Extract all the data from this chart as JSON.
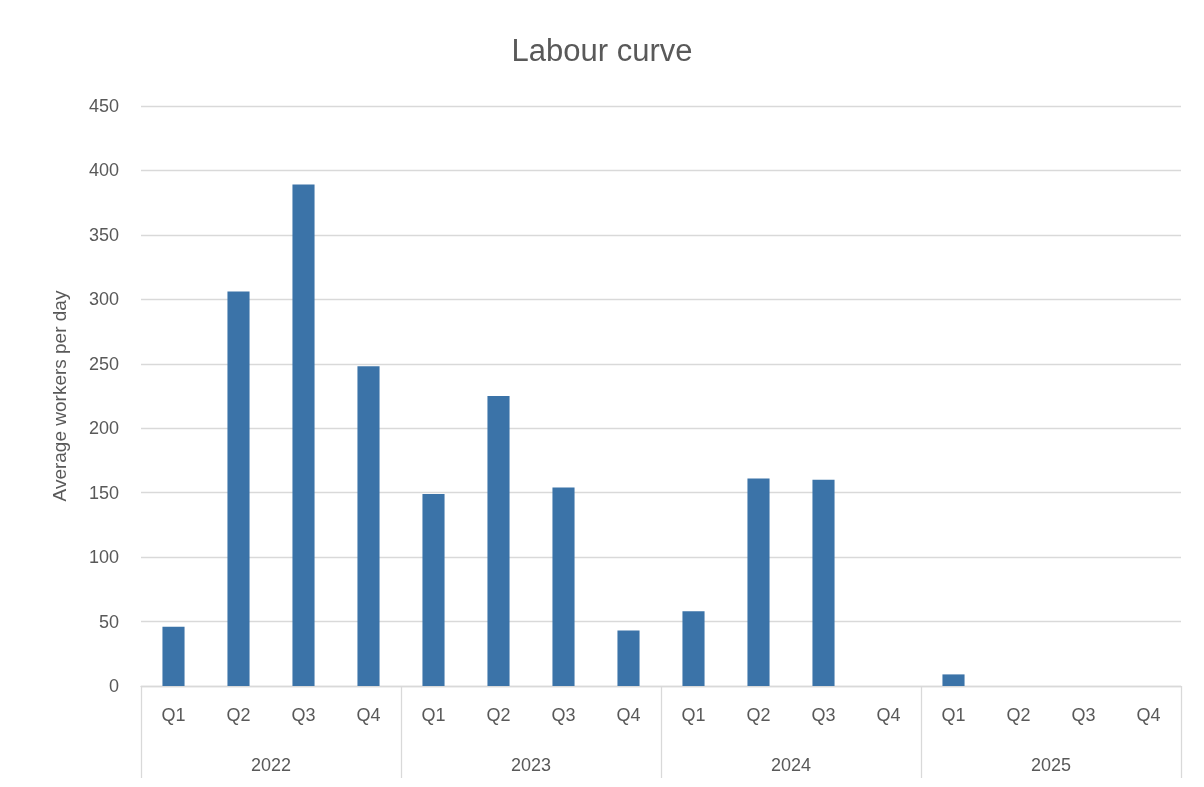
{
  "chart_data": {
    "type": "bar",
    "title": "Labour curve",
    "ylabel": "Average workers per day",
    "categories": [
      "Q1",
      "Q2",
      "Q3",
      "Q4",
      "Q1",
      "Q2",
      "Q3",
      "Q4",
      "Q1",
      "Q2",
      "Q3",
      "Q4",
      "Q1",
      "Q2",
      "Q3",
      "Q4"
    ],
    "values": [
      46,
      306,
      389,
      248,
      149,
      225,
      154,
      43,
      58,
      161,
      160,
      0,
      9,
      0,
      0,
      0
    ],
    "color": "#3b73a8",
    "annotations": [
      "2022",
      "2023",
      "2024",
      "2025"
    ],
    "ylim": [
      0,
      450
    ],
    "yticks": [
      0,
      50,
      100,
      150,
      200,
      250,
      300,
      350,
      400,
      450
    ],
    "grid": "y"
  }
}
